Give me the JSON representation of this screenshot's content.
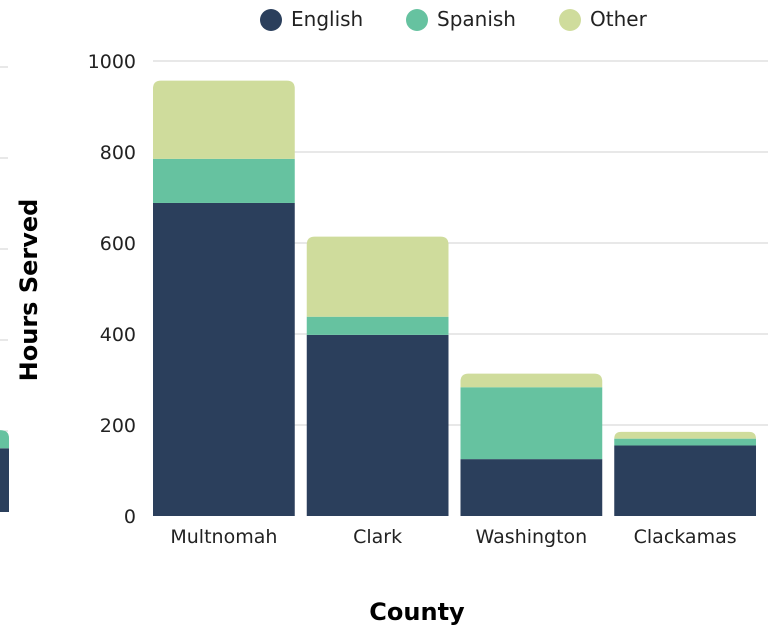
{
  "chart_data": {
    "type": "bar",
    "stacked": true,
    "xlabel": "County",
    "ylabel": "Hours Served",
    "ylim": [
      0,
      1000
    ],
    "yticks": [
      "0",
      "200",
      "400",
      "600",
      "800",
      "1000"
    ],
    "grid": true,
    "legend_placement": "top-center",
    "categories": [
      "Multnomah",
      "Clark",
      "Washington",
      "Clackamas"
    ],
    "series": [
      {
        "name": "English",
        "color": "#2b3f5c",
        "values": [
          688,
          398,
          125,
          155
        ]
      },
      {
        "name": "Spanish",
        "color": "#66c2a0",
        "values": [
          97,
          40,
          158,
          15
        ]
      },
      {
        "name": "Other",
        "color": "#cfdc9c",
        "values": [
          172,
          176,
          30,
          15
        ]
      }
    ],
    "partial_left_bar": {
      "color_bottom": "#2b3f5c",
      "color_top": "#66c2a0",
      "values": [
        140,
        40
      ]
    }
  }
}
